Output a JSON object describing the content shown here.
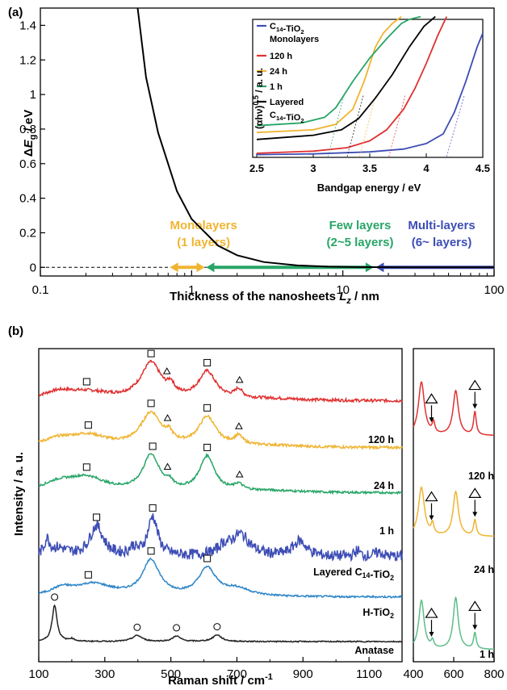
{
  "chart_data": [
    {
      "panel": "(a)",
      "type": "line",
      "xlabel": "Thickness of the nanosheets Lz / nm",
      "ylabel": "ΔEg / eV",
      "xscale": "log",
      "xlim": [
        0.1,
        100
      ],
      "ylim": [
        -0.05,
        1.5
      ],
      "xticks": [
        "0.1",
        "1",
        "10",
        "100"
      ],
      "yticks": [
        "0",
        "0.2",
        "0.4",
        "0.6",
        "0.8",
        "1",
        "1.2",
        "1.4"
      ],
      "series": [
        {
          "x": [
            0.44,
            0.5,
            0.6,
            0.8,
            1,
            1.5,
            2,
            3,
            5,
            8,
            12,
            20,
            40,
            100
          ],
          "y": [
            1.5,
            1.1,
            0.78,
            0.44,
            0.28,
            0.125,
            0.07,
            0.031,
            0.011,
            0.004,
            0.002,
            0.001,
            0.0,
            0.0
          ],
          "color": "#000000"
        }
      ],
      "regions": [
        {
          "title": "Monolayers",
          "subtitle": "(1 layers)",
          "color": "#f0b431",
          "arrow_x": [
            0.72,
            1.22
          ]
        },
        {
          "title": "Few layers",
          "subtitle": "(2~5 layers)",
          "color": "#27a567",
          "arrow_x": [
            1.25,
            16
          ]
        },
        {
          "title": "Multi-layers",
          "subtitle": "(6~ layers)",
          "color": "#3d4db5",
          "arrow_x": [
            16.5,
            100
          ]
        }
      ],
      "inset": {
        "xlabel": "Bandgap energy / eV",
        "ylabel": "(αhν)0.5 / a. u.",
        "xlim": [
          2.5,
          4.5
        ],
        "xticks": [
          "2.5",
          "3",
          "3.5",
          "4",
          "4.5"
        ],
        "legend": [
          {
            "label": "C14-TiO2",
            "label2": "Monolayers",
            "color": "#3d4db5"
          },
          {
            "label": "120 h",
            "color": "#e03030"
          },
          {
            "label": "24 h",
            "color": "#f0b431"
          },
          {
            "label": "1 h",
            "color": "#27a567"
          },
          {
            "label": "Layered",
            "label2": "C14-TiO2",
            "color": "#000000"
          }
        ],
        "series": [
          {
            "name": "C14-TiO2 Monolayers",
            "color": "#3d4db5",
            "edge_ev": 4.18,
            "x": [
              2.5,
              3.0,
              3.5,
              3.8,
              4.0,
              4.15,
              4.25,
              4.35,
              4.45,
              4.5
            ],
            "y": [
              0.02,
              0.025,
              0.04,
              0.06,
              0.1,
              0.17,
              0.33,
              0.55,
              0.8,
              0.9
            ]
          },
          {
            "name": "120 h",
            "color": "#e03030",
            "edge_ev": 3.67,
            "x": [
              2.5,
              3.0,
              3.3,
              3.5,
              3.65,
              3.8,
              3.9,
              4.0,
              4.1,
              4.18
            ],
            "y": [
              0.03,
              0.045,
              0.07,
              0.12,
              0.2,
              0.35,
              0.5,
              0.68,
              0.88,
              1.02
            ]
          },
          {
            "name": "24 h",
            "color": "#f0b431",
            "edge_ev": 3.41,
            "x": [
              2.5,
              3.0,
              3.2,
              3.35,
              3.45,
              3.55,
              3.62,
              3.7,
              3.78
            ],
            "y": [
              0.18,
              0.2,
              0.24,
              0.35,
              0.55,
              0.8,
              0.9,
              0.97,
              1.02
            ]
          },
          {
            "name": "1 h",
            "color": "#27a567",
            "edge_ev": 3.13,
            "x": [
              2.5,
              2.9,
              3.1,
              3.2,
              3.35,
              3.5,
              3.65,
              3.78,
              3.85,
              3.95
            ],
            "y": [
              0.23,
              0.25,
              0.29,
              0.36,
              0.55,
              0.72,
              0.86,
              0.97,
              1.0,
              1.02
            ]
          },
          {
            "name": "Layered C14-TiO2",
            "color": "#000000",
            "edge_ev": 3.3,
            "x": [
              2.5,
              3.0,
              3.25,
              3.4,
              3.55,
              3.7,
              3.85,
              3.98,
              4.08
            ],
            "y": [
              0.13,
              0.16,
              0.2,
              0.28,
              0.43,
              0.6,
              0.8,
              0.95,
              1.02
            ]
          }
        ]
      }
    },
    {
      "panel": "(b)",
      "type": "line",
      "xlabel": "Raman shift / cm-1",
      "ylabel": "Intensity / a. u.",
      "xlim": [
        100,
        1200
      ],
      "xticks": [
        "100",
        "300",
        "500",
        "700",
        "900",
        "1100"
      ],
      "series": [
        {
          "name": "120 h",
          "color": "#e03030",
          "baseline": 0.96,
          "noise": 0.008,
          "peaks": [
            [
              160,
              1.2,
              60
            ],
            [
              250,
              1.2,
              90
            ],
            [
              440,
              6.0,
              38
            ],
            [
              500,
              1.5,
              12
            ],
            [
              610,
              4.5,
              32
            ],
            [
              705,
              1.4,
              14
            ],
            [
              800,
              0.3,
              120
            ]
          ],
          "markers": [
            [
              "square",
              245
            ],
            [
              "square",
              440
            ],
            [
              "triangle",
              488
            ],
            [
              "square",
              610
            ],
            [
              "triangle",
              708
            ]
          ]
        },
        {
          "name": "24 h",
          "color": "#f0b431",
          "baseline": 0.96,
          "noise": 0.007,
          "peaks": [
            [
              160,
              1.2,
              60
            ],
            [
              250,
              1.8,
              70
            ],
            [
              440,
              5.5,
              38
            ],
            [
              495,
              1.2,
              12
            ],
            [
              610,
              4.8,
              32
            ],
            [
              705,
              1.4,
              16
            ],
            [
              800,
              0.3,
              120
            ]
          ],
          "markers": [
            [
              "square",
              250
            ],
            [
              "square",
              440
            ],
            [
              "triangle",
              490
            ],
            [
              "square",
              610
            ],
            [
              "triangle",
              706
            ]
          ]
        },
        {
          "name": "1 h",
          "color": "#27a567",
          "baseline": 0.96,
          "noise": 0.006,
          "peaks": [
            [
              160,
              1.4,
              60
            ],
            [
              245,
              2.3,
              70
            ],
            [
              440,
              6.0,
              30
            ],
            [
              495,
              1.0,
              12
            ],
            [
              610,
              5.8,
              28
            ],
            [
              705,
              1.0,
              15
            ],
            [
              800,
              0.3,
              120
            ]
          ],
          "markers": [
            [
              "square",
              245
            ],
            [
              "square",
              445
            ],
            [
              "triangle",
              490
            ],
            [
              "square",
              610
            ],
            [
              "triangle",
              708
            ]
          ]
        },
        {
          "name": "Layered C14-TiO2",
          "color": "#3d4db5",
          "baseline": 0.96,
          "noise": 0.03,
          "peaks": [
            [
              125,
              2.5,
              10
            ],
            [
              160,
              1.2,
              30
            ],
            [
              275,
              5.0,
              25
            ],
            [
              385,
              1.2,
              12
            ],
            [
              445,
              6.5,
              18
            ],
            [
              660,
              1.2,
              20
            ],
            [
              710,
              3.6,
              35
            ],
            [
              890,
              2.5,
              25
            ],
            [
              1065,
              1.0,
              8
            ],
            [
              1130,
              0.7,
              15
            ]
          ],
          "markers": [
            [
              "square",
              275
            ],
            [
              "square",
              445
            ]
          ]
        },
        {
          "name": "H-TiO2",
          "color": "#2e86c8",
          "baseline": 0.96,
          "noise": 0.005,
          "peaks": [
            [
              170,
              1.2,
              40
            ],
            [
              265,
              2.0,
              70
            ],
            [
              440,
              5.8,
              32
            ],
            [
              610,
              4.5,
              32
            ],
            [
              700,
              1.2,
              50
            ]
          ],
          "markers": [
            [
              "square",
              250
            ],
            [
              "square",
              440
            ],
            [
              "square",
              610
            ]
          ]
        },
        {
          "name": "Anatase",
          "color": "#222222",
          "baseline": 0.96,
          "noise": 0.003,
          "peaks": [
            [
              148,
              6.0,
              9
            ],
            [
              200,
              0.4,
              10
            ],
            [
              398,
              1.0,
              18
            ],
            [
              517,
              0.9,
              14
            ],
            [
              640,
              1.1,
              16
            ]
          ],
          "markers": [
            [
              "circle",
              148
            ],
            [
              "circle",
              398
            ],
            [
              "circle",
              517
            ],
            [
              "circle",
              640
            ]
          ]
        }
      ],
      "detail": {
        "xlim": [
          400,
          800
        ],
        "xticks": [
          "400",
          "600",
          "800"
        ],
        "series": [
          {
            "name": "120 h",
            "color": "#e03030",
            "peaks": [
              [
                440,
                6.0,
                18
              ],
              [
                500,
                1.2,
                8
              ],
              [
                610,
                5.0,
                16
              ],
              [
                705,
                2.6,
                8
              ]
            ],
            "arrow_x": [
              490,
              705
            ]
          },
          {
            "name": "24 h",
            "color": "#f0b431",
            "peaks": [
              [
                440,
                5.5,
                18
              ],
              [
                495,
                1.2,
                8
              ],
              [
                610,
                5.0,
                16
              ],
              [
                705,
                1.8,
                8
              ]
            ],
            "arrow_x": [
              490,
              705
            ]
          },
          {
            "name": "1 h",
            "color": "#5dbd8a",
            "peaks": [
              [
                440,
                5.5,
                16
              ],
              [
                495,
                0.8,
                8
              ],
              [
                610,
                5.8,
                15
              ],
              [
                705,
                1.8,
                8
              ]
            ],
            "arrow_x": [
              490,
              705
            ]
          }
        ]
      }
    }
  ]
}
